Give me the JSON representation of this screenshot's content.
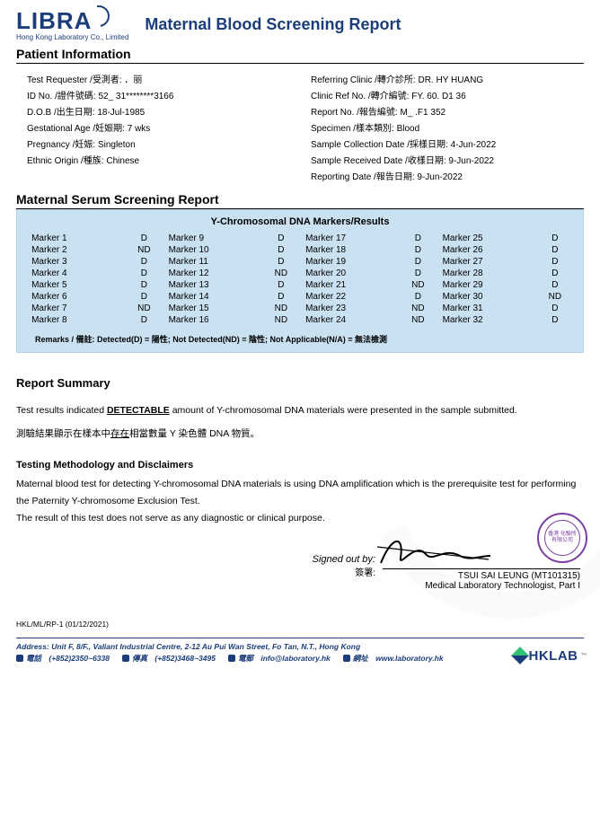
{
  "logo": {
    "brand": "LIBRA",
    "sub": "Hong Kong Laboratory Co., Limited"
  },
  "report_title": "Maternal Blood Screening Report",
  "patient_info_title": "Patient Information",
  "patient_left": [
    {
      "label": "Test Requester /受測者:",
      "value": "．丽"
    },
    {
      "label": "ID No. /證件號碼:",
      "value": "52_  31********3166"
    },
    {
      "label": "D.O.B /出生日期:",
      "value": "18-Jul-1985"
    },
    {
      "label": "Gestational Age /妊娠期:",
      "value": "7 wks"
    },
    {
      "label": "Pregnancy /妊娠:",
      "value": "Singleton"
    },
    {
      "label": "Ethnic Origin /種族:",
      "value": "Chinese"
    }
  ],
  "patient_right": [
    {
      "label": "Referring Clinic /轉介診所:",
      "value": "DR. HY HUANG"
    },
    {
      "label": "Clinic Ref No. /轉介編號:",
      "value": "FY.   60.  D1  36"
    },
    {
      "label": "Report No. /報告編號:",
      "value": "M_ .F1  352"
    },
    {
      "label": "Specimen /樣本類別:",
      "value": "Blood"
    },
    {
      "label": "Sample Collection Date /採樣日期:",
      "value": "4-Jun-2022"
    },
    {
      "label": "Sample Received Date /收樣日期:",
      "value": "9-Jun-2022"
    },
    {
      "label": "Reporting Date /報告日期:",
      "value": "9-Jun-2022"
    }
  ],
  "serum_title": "Maternal Serum Screening Report",
  "marker_panel_title": "Y-Chromosomal DNA Markers/Results",
  "marker_panel_bg": "#c9e1f0",
  "markers": {
    "col1": [
      {
        "n": "Marker 1",
        "v": "D"
      },
      {
        "n": "Marker 2",
        "v": "ND"
      },
      {
        "n": "Marker 3",
        "v": "D"
      },
      {
        "n": "Marker 4",
        "v": "D"
      },
      {
        "n": "Marker 5",
        "v": "D"
      },
      {
        "n": "Marker 6",
        "v": "D"
      },
      {
        "n": "Marker 7",
        "v": "ND"
      },
      {
        "n": "Marker 8",
        "v": "D"
      }
    ],
    "col2": [
      {
        "n": "Marker 9",
        "v": "D"
      },
      {
        "n": "Marker 10",
        "v": "D"
      },
      {
        "n": "Marker 11",
        "v": "D"
      },
      {
        "n": "Marker 12",
        "v": "ND"
      },
      {
        "n": "Marker 13",
        "v": "D"
      },
      {
        "n": "Marker 14",
        "v": "D"
      },
      {
        "n": "Marker 15",
        "v": "ND"
      },
      {
        "n": "Marker 16",
        "v": "ND"
      }
    ],
    "col3": [
      {
        "n": "Marker 17",
        "v": "D"
      },
      {
        "n": "Marker 18",
        "v": "D"
      },
      {
        "n": "Marker 19",
        "v": "D"
      },
      {
        "n": "Marker 20",
        "v": "D"
      },
      {
        "n": "Marker 21",
        "v": "ND"
      },
      {
        "n": "Marker 22",
        "v": "D"
      },
      {
        "n": "Marker 23",
        "v": "ND"
      },
      {
        "n": "Marker 24",
        "v": "ND"
      }
    ],
    "col4": [
      {
        "n": "Marker 25",
        "v": "D"
      },
      {
        "n": "Marker 26",
        "v": "D"
      },
      {
        "n": "Marker 27",
        "v": "D"
      },
      {
        "n": "Marker 28",
        "v": "D"
      },
      {
        "n": "Marker 29",
        "v": "D"
      },
      {
        "n": "Marker 30",
        "v": "ND"
      },
      {
        "n": "Marker 31",
        "v": "D"
      },
      {
        "n": "Marker 32",
        "v": "D"
      }
    ]
  },
  "remarks": "Remarks / 備註: Detected(D) = 陽性; Not Detected(ND) = 陰性; Not Applicable(N/A) = 無法檢測",
  "summary": {
    "heading": "Report Summary",
    "line_pre": "Test results indicated ",
    "detectable": "DETECTABLE",
    "line_post": " amount of Y-chromosomal DNA materials were presented in the sample submitted.",
    "cn_pre": "測驗結果顯示在樣本中",
    "cn_u": "存在",
    "cn_post": "相當數量 Y 染色體 DNA 物質。"
  },
  "methodology": {
    "heading": "Testing Methodology and Disclaimers",
    "p1": "Maternal blood test for detecting Y-chromosomal DNA materials is using DNA amplification which is the prerequisite test for performing the Paternity Y-chromosome Exclusion Test.",
    "p2": "The result of this test does not serve as any diagnostic or clinical purpose."
  },
  "signoff": {
    "label_en": "Signed out by:",
    "label_cn": "簽署:",
    "name": "TSUI SAI LEUNG (MT101315)",
    "role": "Medical Laboratory Technologist, Part I",
    "stamp_outer": "Hong Kong Laboratory Co., Limited",
    "stamp_inner": "香港\n化驗所\n有限公司"
  },
  "form_code": "HKL/ML/RP-1 (01/12/2021)",
  "footer": {
    "address": "Address: Unit F, 8/F., Valiant Industrial Centre, 2-12 Au Pui Wan Street, Fo Tan, N.T., Hong Kong",
    "phone_lbl": "電話",
    "phone": "(+852)2350~6338",
    "fax_lbl": "傳真",
    "fax": "(+852)3468~3495",
    "email_lbl": "電郵",
    "email": "info@laboratory.hk",
    "web_lbl": "網址",
    "web": "www.laboratory.hk"
  },
  "hklab": "HKLAB",
  "colors": {
    "brand": "#1b3d7a",
    "panel": "#c9e1f0",
    "stamp": "#7a3fa0"
  }
}
